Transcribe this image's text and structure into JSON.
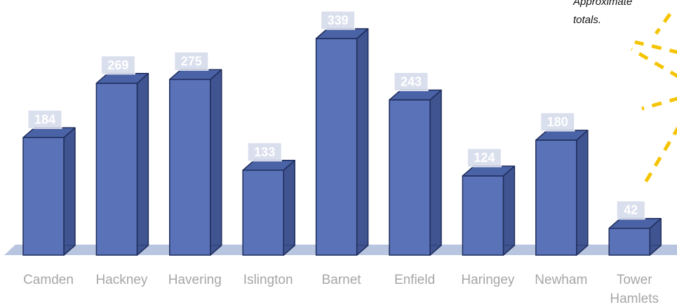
{
  "annotation": {
    "text": "Approximate totals."
  },
  "colors": {
    "bar_front": "#5a73b8",
    "bar_side": "#3f5490",
    "bar_top": "#4a62a6",
    "bar_outline": "#1f2d5c",
    "floor": "#b8c5e0",
    "label_box": "#d3d9ea",
    "category_text": "#a6a6a6",
    "value_text": "#ffffff",
    "decoration": "#f5c400"
  },
  "chart_data": {
    "type": "bar",
    "style": "3d-column",
    "categories": [
      "Camden",
      "Hackney",
      "Havering",
      "Islington",
      "Barnet",
      "Enfield",
      "Haringey",
      "Newham",
      "Tower Hamlets"
    ],
    "category_lines": [
      [
        "Camden"
      ],
      [
        "Hackney"
      ],
      [
        "Havering"
      ],
      [
        "Islington"
      ],
      [
        "Barnet"
      ],
      [
        "Enfield"
      ],
      [
        "Haringey"
      ],
      [
        "Newham"
      ],
      [
        "Tower",
        "Hamlets"
      ]
    ],
    "values": [
      184,
      269,
      275,
      133,
      339,
      243,
      124,
      180,
      42
    ],
    "value_labels": [
      "184",
      "269",
      "275",
      "133",
      "339",
      "243",
      "124",
      "180",
      "42"
    ],
    "ylim": [
      0,
      339
    ],
    "grid": false,
    "legend": "none"
  }
}
